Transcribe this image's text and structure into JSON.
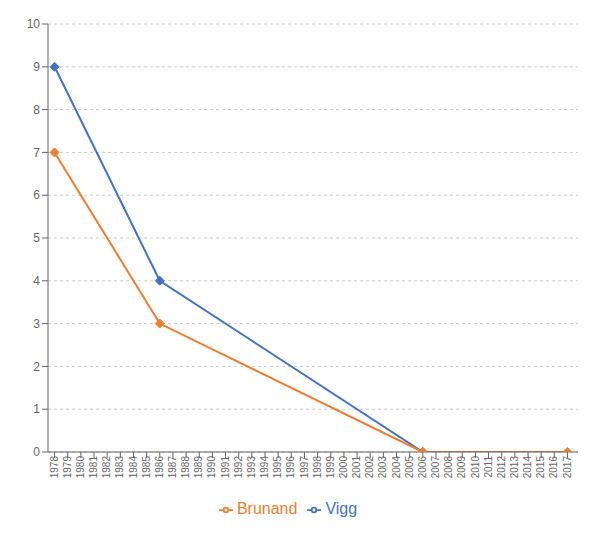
{
  "chart_data": {
    "type": "line",
    "xlim": [
      1977.5,
      2017.8
    ],
    "xticks": [
      1978,
      1979,
      1980,
      1981,
      1982,
      1983,
      1984,
      1985,
      1986,
      1987,
      1988,
      1989,
      1990,
      1991,
      1992,
      1993,
      1994,
      1995,
      1996,
      1997,
      1998,
      1999,
      2000,
      2001,
      2002,
      2003,
      2004,
      2005,
      2006,
      2007,
      2008,
      2009,
      2010,
      2011,
      2012,
      2013,
      2014,
      2015,
      2016,
      2017
    ],
    "ylim": [
      0,
      10
    ],
    "yticks": [
      0,
      1,
      2,
      3,
      4,
      5,
      6,
      7,
      8,
      9,
      10
    ],
    "grid": true,
    "legend": "bottom",
    "marker": "diamond",
    "series": [
      {
        "name": "Vigg",
        "color": "#4472c4",
        "x": [
          1978,
          1986,
          2006
        ],
        "values": [
          9,
          4,
          0
        ]
      },
      {
        "name": "Brunand",
        "color": "#ed7d31",
        "x": [
          1978,
          1986,
          2006,
          2017
        ],
        "values": [
          7,
          3,
          0,
          0
        ]
      }
    ]
  }
}
